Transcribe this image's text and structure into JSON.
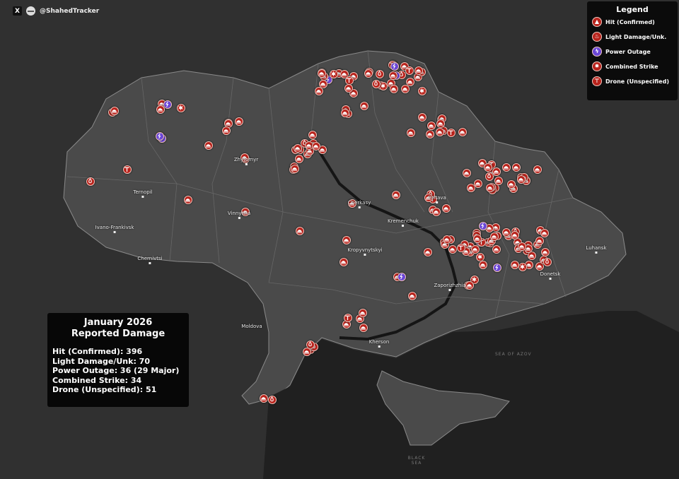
{
  "header": {
    "x_icon": "x-logo-icon",
    "x_label": "X",
    "handle": "@ShahedTracker"
  },
  "legend": {
    "title": "Legend",
    "items": [
      {
        "label": "Hit (Confirmed)",
        "icon": "hit-icon",
        "color": "#b8231c",
        "glyph": "▲"
      },
      {
        "label": "Light Damage/Unk.",
        "icon": "fire-icon",
        "color": "#b8231c",
        "glyph": "♨"
      },
      {
        "label": "Power Outage",
        "icon": "lightning-icon",
        "color": "#6a46d6",
        "glyph": "ϟ"
      },
      {
        "label": "Combined Strike",
        "icon": "burst-icon",
        "color": "#b8231c",
        "glyph": "✹"
      },
      {
        "label": "Drone (Unspecified)",
        "icon": "drone-icon",
        "color": "#b8231c",
        "glyph": "⊤"
      }
    ]
  },
  "summary": {
    "title": "January 2026",
    "subtitle": "Reported Damage",
    "rows": [
      "Hit (Confirmed): 396",
      "Light Damage/Unk: 70",
      "Power Outage: 36 (29 Major)",
      "Combined Strike: 34",
      "Drone (Unspecified): 51"
    ]
  },
  "counts": {
    "hit": 396,
    "light": 70,
    "power": 36,
    "power_major": 29,
    "combined": 34,
    "drone": 51
  },
  "cities": [
    "Ternopil",
    "Ivano-Frankivsk",
    "Chernivtsi",
    "Vinnytsia",
    "Zhytomyr",
    "Cherkasy",
    "Kremenchuk",
    "Kropyvnytskyi",
    "Poltava",
    "Zaporizhzhia",
    "Kherson",
    "Donetsk",
    "Luhansk",
    "Moldova"
  ],
  "seas": [
    "SEA OF AZOV",
    "BLACK SEA"
  ],
  "colors": {
    "land": "#4a4a4a",
    "background": "#2f2f2f",
    "sea": "#1f1f1f",
    "marker_red": "#b8231c",
    "marker_purple": "#6a46d6"
  }
}
